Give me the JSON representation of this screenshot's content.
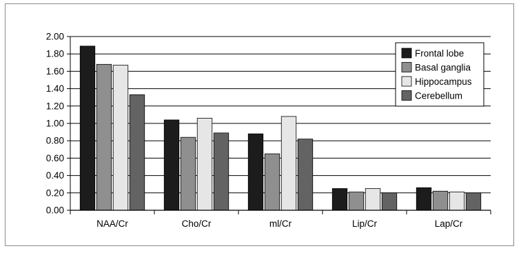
{
  "chart_data": {
    "type": "bar",
    "categories": [
      "NAA/Cr",
      "Cho/Cr",
      "ml/Cr",
      "Lip/Cr",
      "Lap/Cr"
    ],
    "series": [
      {
        "name": "Frontal lobe",
        "color": "#1c1c1c",
        "values": [
          1.89,
          1.04,
          0.88,
          0.25,
          0.26
        ]
      },
      {
        "name": "Basal ganglia",
        "color": "#8f8f8f",
        "values": [
          1.68,
          0.84,
          0.65,
          0.21,
          0.22
        ]
      },
      {
        "name": "Hippocampus",
        "color": "#e6e6e6",
        "values": [
          1.67,
          1.06,
          1.08,
          0.25,
          0.21
        ]
      },
      {
        "name": "Cerebellum",
        "color": "#636363",
        "values": [
          1.33,
          0.89,
          0.82,
          0.2,
          0.2
        ]
      }
    ],
    "ylim": [
      0,
      2.0
    ],
    "yticks": [
      "0.00",
      "0.20",
      "0.40",
      "0.60",
      "0.80",
      "1.00",
      "1.20",
      "1.40",
      "1.60",
      "1.80",
      "2.00"
    ],
    "grid": true,
    "legend_position": "top-right"
  }
}
